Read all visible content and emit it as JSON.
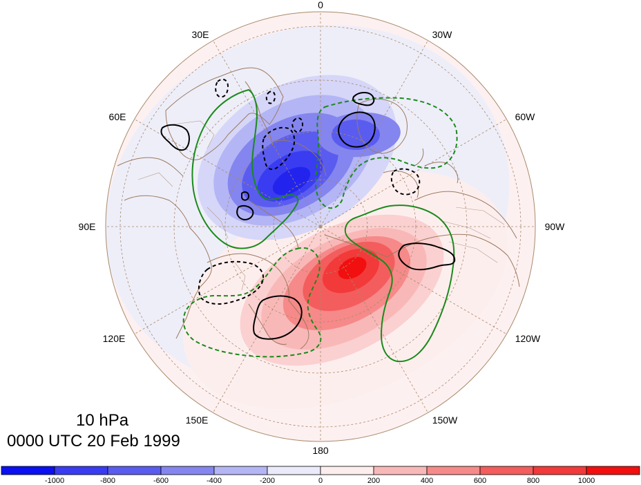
{
  "title_level": "10 hPa",
  "title_time": "0000 UTC 20 Feb 1999",
  "longitude_labels": {
    "deg0": "0",
    "deg30w": "30W",
    "deg60w": "60W",
    "deg90w": "90W",
    "deg120w": "120W",
    "deg150w": "150W",
    "deg180": "180",
    "deg150e": "150E",
    "deg120e": "120E",
    "deg90e": "90E",
    "deg60e": "60E",
    "deg30e": "30E"
  },
  "colorbar": {
    "colors": [
      "#0a10f0",
      "#3a3cf2",
      "#5a5cf0",
      "#8485ee",
      "#b4b5f5",
      "#eaeafa",
      "#fdeeee",
      "#f9b8b8",
      "#f68989",
      "#f45d5d",
      "#f23a3a",
      "#f20f0f"
    ],
    "labels": [
      "-1000",
      "-800",
      "-600",
      "-400",
      "-200",
      "0",
      "200",
      "400",
      "600",
      "800",
      "1000"
    ]
  },
  "colors": {
    "grid": "#a88a6a",
    "coast": "#9a7a5e",
    "positive_contour": "#000000",
    "green_contour": "#1a8a1a"
  }
}
